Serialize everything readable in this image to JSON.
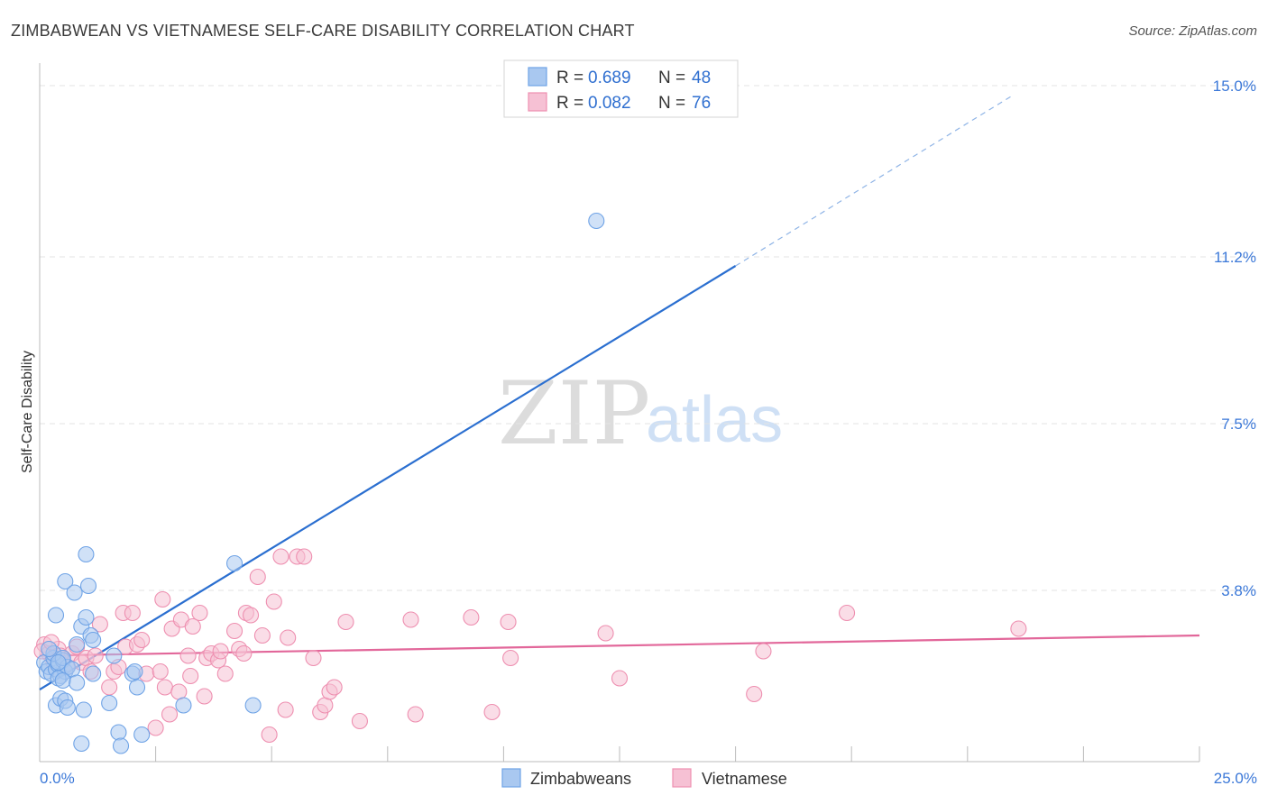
{
  "chart_data": {
    "type": "scatter",
    "title": "ZIMBABWEAN VS VIETNAMESE SELF-CARE DISABILITY CORRELATION CHART",
    "source": "Source: ZipAtlas.com",
    "xlabel": "",
    "ylabel": "Self-Care Disability",
    "xlim": [
      0,
      25
    ],
    "ylim": [
      0,
      15.5
    ],
    "x_tick_labels": [
      "0.0%",
      "25.0%"
    ],
    "y_ticks": [
      {
        "value": 3.8,
        "label": "3.8%"
      },
      {
        "value": 7.5,
        "label": "7.5%"
      },
      {
        "value": 11.2,
        "label": "11.2%"
      },
      {
        "value": 15.0,
        "label": "15.0%"
      }
    ],
    "watermark": {
      "zip": "ZIP",
      "atlas": "atlas"
    },
    "legend_stats": [
      {
        "r_label": "R =",
        "r_value": "0.689",
        "n_label": "N =",
        "n_value": "48"
      },
      {
        "r_label": "R =",
        "r_value": "0.082",
        "n_label": "N =",
        "n_value": "76"
      }
    ],
    "series": [
      {
        "name": "Zimbabweans",
        "color": "#6fa3e6",
        "fill": "#a9c8f0",
        "line_color": "#2b6fd0",
        "trend": {
          "x0": 0.0,
          "y0": 1.6,
          "x1": 15.0,
          "y1": 11.0,
          "dash_to_x": 21.0,
          "dash_to_y": 14.8
        },
        "points": [
          [
            0.1,
            2.2
          ],
          [
            0.15,
            2.0
          ],
          [
            0.2,
            2.1
          ],
          [
            0.25,
            1.95
          ],
          [
            0.3,
            2.3
          ],
          [
            0.35,
            2.05
          ],
          [
            0.4,
            2.15
          ],
          [
            0.45,
            1.9
          ],
          [
            0.5,
            2.25
          ],
          [
            0.55,
            2.0
          ],
          [
            0.6,
            2.1
          ],
          [
            0.3,
            2.4
          ],
          [
            0.4,
            1.85
          ],
          [
            0.5,
            2.3
          ],
          [
            0.7,
            2.05
          ],
          [
            0.2,
            2.5
          ],
          [
            0.35,
            1.25
          ],
          [
            0.45,
            1.4
          ],
          [
            0.5,
            1.8
          ],
          [
            0.55,
            1.35
          ],
          [
            0.6,
            1.2
          ],
          [
            0.8,
            2.6
          ],
          [
            0.9,
            3.0
          ],
          [
            1.0,
            3.2
          ],
          [
            1.1,
            2.8
          ],
          [
            0.9,
            0.4
          ],
          [
            1.5,
            1.3
          ],
          [
            1.7,
            0.65
          ],
          [
            1.75,
            0.35
          ],
          [
            2.0,
            1.95
          ],
          [
            2.1,
            1.65
          ],
          [
            2.2,
            0.6
          ],
          [
            3.1,
            1.25
          ],
          [
            4.2,
            4.4
          ],
          [
            4.6,
            1.25
          ],
          [
            1.0,
            4.6
          ],
          [
            0.55,
            4.0
          ],
          [
            0.75,
            3.75
          ],
          [
            1.05,
            3.9
          ],
          [
            0.35,
            3.25
          ],
          [
            1.15,
            1.95
          ],
          [
            1.6,
            2.35
          ],
          [
            2.05,
            2.0
          ],
          [
            0.8,
            1.75
          ],
          [
            0.4,
            2.2
          ],
          [
            0.95,
            1.15
          ],
          [
            1.15,
            2.7
          ],
          [
            12.0,
            12.0
          ]
        ]
      },
      {
        "name": "Vietnamese",
        "color": "#ee8fb0",
        "fill": "#f6c1d4",
        "line_color": "#e2679a",
        "trend": {
          "x0": 0.0,
          "y0": 2.35,
          "x1": 25.0,
          "y1": 2.8
        },
        "points": [
          [
            0.1,
            2.6
          ],
          [
            0.2,
            2.4
          ],
          [
            0.3,
            2.2
          ],
          [
            0.4,
            2.5
          ],
          [
            0.5,
            2.3
          ],
          [
            0.6,
            2.1
          ],
          [
            0.7,
            2.4
          ],
          [
            0.8,
            2.55
          ],
          [
            0.9,
            2.2
          ],
          [
            1.0,
            2.3
          ],
          [
            1.1,
            2.0
          ],
          [
            1.2,
            2.35
          ],
          [
            1.3,
            3.05
          ],
          [
            1.5,
            1.65
          ],
          [
            1.6,
            2.0
          ],
          [
            1.7,
            2.1
          ],
          [
            1.8,
            3.3
          ],
          [
            1.85,
            2.55
          ],
          [
            2.0,
            3.3
          ],
          [
            2.1,
            2.6
          ],
          [
            2.2,
            2.7
          ],
          [
            2.3,
            1.95
          ],
          [
            2.5,
            0.75
          ],
          [
            2.6,
            2.0
          ],
          [
            2.65,
            3.6
          ],
          [
            2.7,
            1.65
          ],
          [
            2.85,
            2.95
          ],
          [
            3.0,
            1.55
          ],
          [
            3.05,
            3.15
          ],
          [
            3.2,
            2.35
          ],
          [
            3.25,
            1.9
          ],
          [
            3.3,
            3.0
          ],
          [
            3.45,
            3.3
          ],
          [
            3.55,
            1.45
          ],
          [
            3.6,
            2.3
          ],
          [
            3.7,
            2.4
          ],
          [
            3.85,
            2.25
          ],
          [
            3.9,
            2.45
          ],
          [
            4.0,
            1.95
          ],
          [
            4.2,
            2.9
          ],
          [
            4.3,
            2.5
          ],
          [
            4.4,
            2.4
          ],
          [
            4.45,
            3.3
          ],
          [
            4.55,
            3.25
          ],
          [
            4.7,
            4.1
          ],
          [
            4.8,
            2.8
          ],
          [
            4.95,
            0.6
          ],
          [
            5.05,
            3.55
          ],
          [
            5.2,
            4.55
          ],
          [
            5.3,
            1.15
          ],
          [
            5.35,
            2.75
          ],
          [
            5.55,
            4.55
          ],
          [
            5.7,
            4.55
          ],
          [
            5.9,
            2.3
          ],
          [
            6.05,
            1.1
          ],
          [
            6.15,
            1.25
          ],
          [
            6.25,
            1.55
          ],
          [
            6.35,
            1.65
          ],
          [
            6.6,
            3.1
          ],
          [
            6.9,
            0.9
          ],
          [
            8.0,
            3.15
          ],
          [
            8.1,
            1.05
          ],
          [
            9.3,
            3.2
          ],
          [
            9.75,
            1.1
          ],
          [
            10.1,
            3.1
          ],
          [
            10.15,
            2.3
          ],
          [
            12.2,
            2.85
          ],
          [
            12.5,
            1.85
          ],
          [
            15.6,
            2.45
          ],
          [
            15.4,
            1.5
          ],
          [
            17.4,
            3.3
          ],
          [
            21.1,
            2.95
          ],
          [
            0.05,
            2.45
          ],
          [
            0.25,
            2.65
          ],
          [
            0.45,
            2.35
          ],
          [
            2.8,
            1.05
          ]
        ]
      }
    ]
  }
}
